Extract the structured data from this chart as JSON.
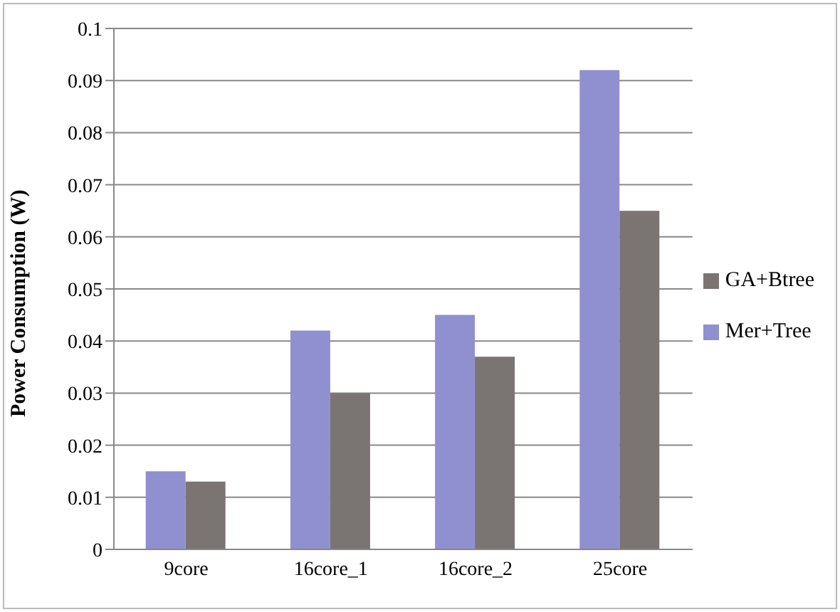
{
  "chart_data": {
    "type": "bar",
    "ylabel": "Power Consumption (W)",
    "categories": [
      "9core",
      "16core_1",
      "16core_2",
      "25core"
    ],
    "series": [
      {
        "name": "Mer+Tree",
        "color": "#9090d0",
        "values": [
          0.015,
          0.042,
          0.045,
          0.092
        ]
      },
      {
        "name": "GA+Btree",
        "color": "#7a7573",
        "values": [
          0.013,
          0.03,
          0.037,
          0.065
        ]
      }
    ],
    "ylim": [
      0,
      0.1
    ],
    "yticks": [
      0,
      0.01,
      0.02,
      0.03,
      0.04,
      0.05,
      0.06,
      0.07,
      0.08,
      0.09,
      0.1
    ],
    "grid": "y",
    "legend": "right"
  }
}
